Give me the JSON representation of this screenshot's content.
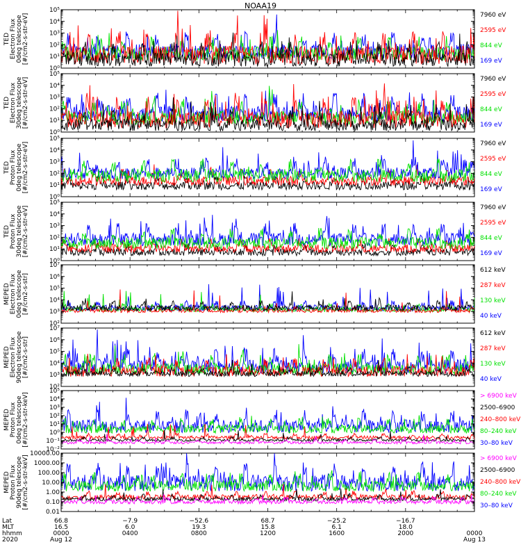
{
  "chart_data": {
    "type": "line",
    "title": "NOAA19",
    "time_axis": {
      "row_labels": [
        "Lat",
        "MLT",
        "hhmm",
        "2020"
      ],
      "ticks": [
        {
          "lat": "66.8",
          "mlt": "16.5",
          "hhmm": "0000",
          "date": "Aug 12"
        },
        {
          "lat": "−7.9",
          "mlt": "6.0",
          "hhmm": "0400",
          "date": ""
        },
        {
          "lat": "−52.6",
          "mlt": "19.3",
          "hhmm": "0800",
          "date": ""
        },
        {
          "lat": "68.7",
          "mlt": "15.8",
          "hhmm": "1200",
          "date": ""
        },
        {
          "lat": "−25.2",
          "mlt": "6.1",
          "hhmm": "1600",
          "date": ""
        },
        {
          "lat": "−16.7",
          "mlt": "18.0",
          "hhmm": "2000",
          "date": ""
        },
        {
          "lat": "",
          "mlt": "",
          "hhmm": "0000",
          "date": "Aug 13"
        }
      ]
    },
    "panels": [
      {
        "id": "ted-e-0",
        "ylabel": [
          "TED",
          "Electron Flux",
          "0deg telescope",
          "[#/cm2-s-str-eV]"
        ],
        "ymin_exp": 0,
        "ymax_exp": 5,
        "ticks": [
          "10⁰",
          "10¹",
          "10²",
          "10³",
          "10⁴",
          "10⁵"
        ],
        "legend": [
          {
            "text": "7960 eV",
            "color": "#000000"
          },
          {
            "text": "2595 eV",
            "color": "#ff0000"
          },
          {
            "text": "844 eV",
            "color": "#00e000"
          },
          {
            "text": "169 eV",
            "color": "#0000ff"
          }
        ],
        "series": [
          {
            "name": "169 eV",
            "base": 1.2,
            "amp": 1.3,
            "spike": 0.04,
            "spikeAmp": 1.6
          },
          {
            "name": "844 eV",
            "base": 1.0,
            "amp": 1.2,
            "spike": 0.05,
            "spikeAmp": 1.6
          },
          {
            "name": "2595 eV",
            "base": 0.8,
            "amp": 1.6,
            "spike": 0.08,
            "spikeAmp": 2.4
          },
          {
            "name": "7960 eV",
            "base": 0.5,
            "amp": 1.2,
            "spike": 0.04,
            "spikeAmp": 2.0
          }
        ]
      },
      {
        "id": "ted-e-30",
        "ylabel": [
          "TED",
          "Electron Flux",
          "30deg telescope",
          "[#/cm2-s-str-eV]"
        ],
        "ymin_exp": 0,
        "ymax_exp": 5,
        "ticks": [
          "10⁰",
          "10¹",
          "10²",
          "10³",
          "10⁴",
          "10⁵"
        ],
        "legend": [
          {
            "text": "7960 eV",
            "color": "#000000"
          },
          {
            "text": "2595 eV",
            "color": "#ff0000"
          },
          {
            "text": "844 eV",
            "color": "#00e000"
          },
          {
            "text": "169 eV",
            "color": "#0000ff"
          }
        ],
        "series": [
          {
            "name": "169 eV",
            "base": 1.3,
            "amp": 1.4,
            "spike": 0.06,
            "spikeAmp": 1.5
          },
          {
            "name": "844 eV",
            "base": 1.0,
            "amp": 1.2,
            "spike": 0.05,
            "spikeAmp": 1.4
          },
          {
            "name": "2595 eV",
            "base": 0.8,
            "amp": 1.5,
            "spike": 0.07,
            "spikeAmp": 2.6
          },
          {
            "name": "7960 eV",
            "base": 0.4,
            "amp": 1.0,
            "spike": 0.03,
            "spikeAmp": 2.0
          }
        ]
      },
      {
        "id": "ted-p-0",
        "ylabel": [
          "TED",
          "Proton Flux",
          "0deg telescope",
          "[#/cm2-s-str-eV]"
        ],
        "ymin_exp": 0,
        "ymax_exp": 5,
        "ticks": [
          "10⁰",
          "10¹",
          "10²",
          "10³",
          "10⁴",
          "10⁵"
        ],
        "legend": [
          {
            "text": "7960 eV",
            "color": "#000000"
          },
          {
            "text": "2595 eV",
            "color": "#ff0000"
          },
          {
            "text": "844 eV",
            "color": "#00e000"
          },
          {
            "text": "169 eV",
            "color": "#0000ff"
          }
        ],
        "series": [
          {
            "name": "7960 eV",
            "base": 0.8,
            "amp": 0.7,
            "spike": 0.02,
            "spikeAmp": 0.6
          },
          {
            "name": "2595 eV",
            "base": 1.2,
            "amp": 0.8,
            "spike": 0.03,
            "spikeAmp": 0.8
          },
          {
            "name": "169 eV",
            "base": 1.8,
            "amp": 1.0,
            "spike": 0.08,
            "spikeAmp": 1.8
          },
          {
            "name": "844 eV",
            "base": 1.6,
            "amp": 1.1,
            "spike": 0.02,
            "spikeAmp": 0.6
          }
        ]
      },
      {
        "id": "ted-p-30",
        "ylabel": [
          "TED",
          "Proton Flux",
          "30deg telescope",
          "[#/cm2-s-str-eV]"
        ],
        "ymin_exp": 0,
        "ymax_exp": 5,
        "ticks": [
          "10⁰",
          "10¹",
          "10²",
          "10³",
          "10⁴",
          "10⁵"
        ],
        "legend": [
          {
            "text": "7960 eV",
            "color": "#000000"
          },
          {
            "text": "2595 eV",
            "color": "#ff0000"
          },
          {
            "text": "844 eV",
            "color": "#00e000"
          },
          {
            "text": "169 eV",
            "color": "#0000ff"
          }
        ],
        "series": [
          {
            "name": "7960 eV",
            "base": 0.6,
            "amp": 0.6,
            "spike": 0.01,
            "spikeAmp": 0.5
          },
          {
            "name": "2595 eV",
            "base": 0.9,
            "amp": 0.7,
            "spike": 0.02,
            "spikeAmp": 0.6
          },
          {
            "name": "169 eV",
            "base": 1.6,
            "amp": 1.1,
            "spike": 0.07,
            "spikeAmp": 1.7
          },
          {
            "name": "844 eV",
            "base": 1.3,
            "amp": 1.0,
            "spike": 0.02,
            "spikeAmp": 0.6
          }
        ]
      },
      {
        "id": "meped-e-0",
        "ylabel": [
          "MEPED",
          "Electron Flux",
          "0deg telescope",
          "[#/cm2-s-str]"
        ],
        "ymin_exp": 2,
        "ymax_exp": 7,
        "ticks": [
          "10²",
          "10³",
          "10⁴",
          "10⁵",
          "10⁶",
          "10⁷"
        ],
        "legend": [
          {
            "text": "612 keV",
            "color": "#000000"
          },
          {
            "text": "287 keV",
            "color": "#ff0000"
          },
          {
            "text": "130 keV",
            "color": "#00e000"
          },
          {
            "text": "40 keV",
            "color": "#0000ff"
          }
        ],
        "series": [
          {
            "name": "40 keV",
            "base": 3.2,
            "amp": 0.5,
            "spike": 0.05,
            "spikeAmp": 2.0
          },
          {
            "name": "130 keV",
            "base": 3.1,
            "amp": 0.4,
            "spike": 0.03,
            "spikeAmp": 1.6
          },
          {
            "name": "287 keV",
            "base": 3.0,
            "amp": 0.3,
            "spike": 0.03,
            "spikeAmp": 1.8
          },
          {
            "name": "612 keV",
            "base": 3.2,
            "amp": 0.5,
            "spike": 0.03,
            "spikeAmp": 0.8
          }
        ]
      },
      {
        "id": "meped-e-90",
        "ylabel": [
          "MEPED",
          "Electron Flux",
          "90deg telescope",
          "[#/cm2-s-str]"
        ],
        "ymin_exp": 2,
        "ymax_exp": 7,
        "ticks": [
          "10²",
          "10³",
          "10⁴",
          "10⁵",
          "10⁶",
          "10⁷"
        ],
        "legend": [
          {
            "text": "612 keV",
            "color": "#000000"
          },
          {
            "text": "287 keV",
            "color": "#ff0000"
          },
          {
            "text": "130 keV",
            "color": "#00e000"
          },
          {
            "text": "40 keV",
            "color": "#0000ff"
          }
        ],
        "series": [
          {
            "name": "40 keV",
            "base": 3.5,
            "amp": 1.2,
            "spike": 0.08,
            "spikeAmp": 2.0
          },
          {
            "name": "130 keV",
            "base": 3.3,
            "amp": 1.0,
            "spike": 0.06,
            "spikeAmp": 1.6
          },
          {
            "name": "287 keV",
            "base": 3.1,
            "amp": 0.9,
            "spike": 0.05,
            "spikeAmp": 1.6
          },
          {
            "name": "612 keV",
            "base": 3.0,
            "amp": 0.5,
            "spike": 0.03,
            "spikeAmp": 0.8
          }
        ]
      },
      {
        "id": "meped-p-0",
        "ylabel": [
          "MEPED",
          "Proton Flux",
          "0deg telescope",
          "[#/cm2-s-str-keV]"
        ],
        "ymin_exp": -2,
        "ymax_exp": 5,
        "ticks": [
          "10⁻²",
          "10⁻¹",
          "10⁰",
          "10¹",
          "10²",
          "10³",
          "10⁴",
          "10⁵"
        ],
        "legend": [
          {
            "text": "> 6900 keV",
            "color": "#ff00ff"
          },
          {
            "text": "2500–6900",
            "color": "#000000"
          },
          {
            "text": "240–800 keV",
            "color": "#ff0000"
          },
          {
            "text": "80–240 keV",
            "color": "#00e000"
          },
          {
            "text": "30–80 keV",
            "color": "#0000ff"
          }
        ],
        "series": [
          {
            "name": "30-80 keV",
            "base": 0.4,
            "amp": 1.6,
            "spike": 0.06,
            "spikeAmp": 2.0
          },
          {
            "name": "80-240 keV",
            "base": 0.2,
            "amp": 1.0,
            "spike": 0.04,
            "spikeAmp": 1.4
          },
          {
            "name": "240-800 keV",
            "base": -0.7,
            "amp": 0.4,
            "spike": 0.03,
            "spikeAmp": 1.6
          },
          {
            "name": "2500-6900",
            "base": -1.0,
            "amp": 0.3,
            "spike": 0.02,
            "spikeAmp": 1.2
          },
          {
            "name": "> 6900 keV",
            "base": -1.3,
            "amp": 0.3,
            "spike": 0.02,
            "spikeAmp": 1.0
          }
        ]
      },
      {
        "id": "meped-p-90",
        "ylabel": [
          "MEPED",
          "Proton Flux",
          "90deg telescope",
          "[#/cm2-s-str-keV]"
        ],
        "ymin_exp": -2,
        "ymax_exp": 4,
        "ticks": [
          "0.01",
          "0.10",
          "1.00",
          "10.00",
          "100.00",
          "1000.00",
          "10000.00"
        ],
        "legend": [
          {
            "text": "> 6900 keV",
            "color": "#ff00ff"
          },
          {
            "text": "2500–6900",
            "color": "#000000"
          },
          {
            "text": "240–800 keV",
            "color": "#ff0000"
          },
          {
            "text": "80–240 keV",
            "color": "#00e000"
          },
          {
            "text": "30–80 keV",
            "color": "#0000ff"
          }
        ],
        "series": [
          {
            "name": "30-80 keV",
            "base": 0.6,
            "amp": 1.7,
            "spike": 0.07,
            "spikeAmp": 1.6
          },
          {
            "name": "80-240 keV",
            "base": 0.4,
            "amp": 1.1,
            "spike": 0.05,
            "spikeAmp": 1.4
          },
          {
            "name": "240-800 keV",
            "base": -0.6,
            "amp": 0.5,
            "spike": 0.03,
            "spikeAmp": 1.6
          },
          {
            "name": "2500-6900",
            "base": -0.8,
            "amp": 0.4,
            "spike": 0.02,
            "spikeAmp": 1.2
          },
          {
            "name": "> 6900 keV",
            "base": -1.1,
            "amp": 0.4,
            "spike": 0.02,
            "spikeAmp": 1.0
          }
        ]
      }
    ]
  }
}
